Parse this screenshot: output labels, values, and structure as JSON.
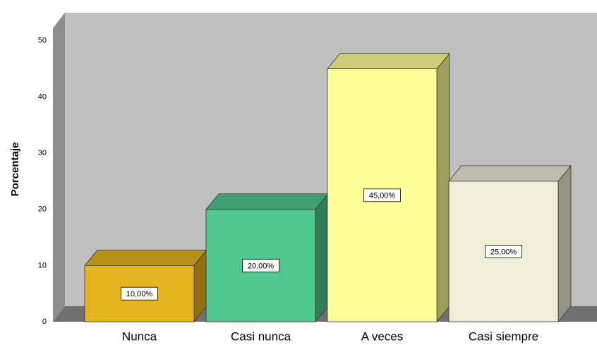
{
  "chart_data": {
    "type": "bar",
    "y_label": "Porcentaje",
    "categories": [
      "Nunca",
      "Casi nunca",
      "A veces",
      "Casi siempre"
    ],
    "values": [
      10,
      20,
      45,
      25
    ],
    "value_labels": [
      "10,00%",
      "20,00%",
      "45,00%",
      "25,00%"
    ],
    "colors": [
      "#e6b41e",
      "#50c890",
      "#ffff99",
      "#f0ecd8"
    ],
    "ylim": [
      0,
      55
    ],
    "yticks": [
      0,
      10,
      20,
      30,
      40,
      50
    ]
  }
}
